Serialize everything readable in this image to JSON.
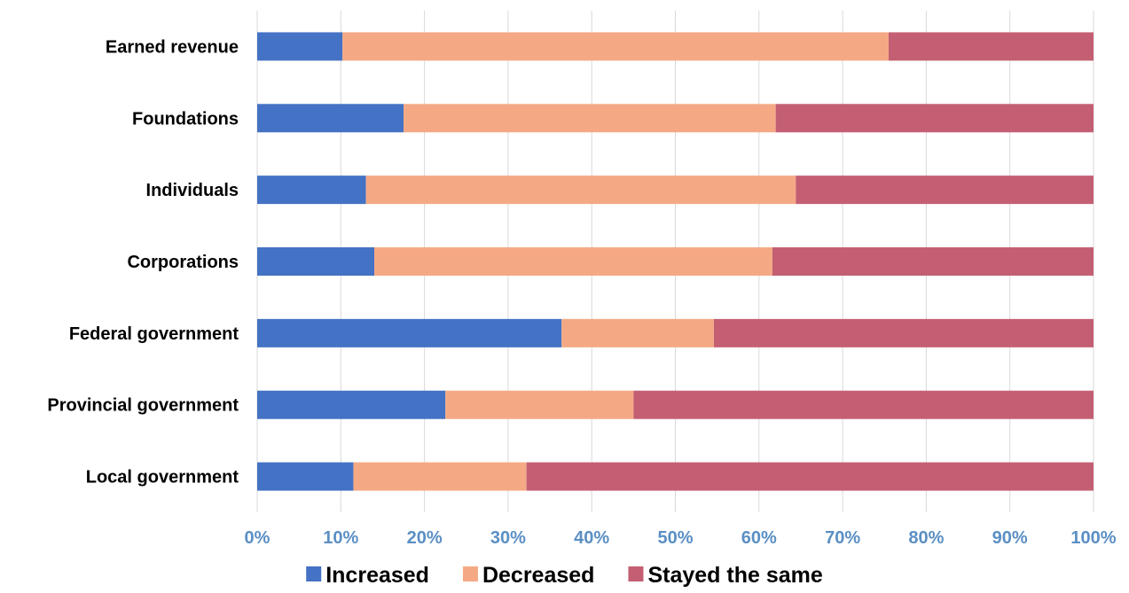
{
  "chart_data": {
    "type": "bar",
    "orientation": "horizontal",
    "stacked": true,
    "normalized_percent": true,
    "categories": [
      "Earned revenue",
      "Foundations",
      "Individuals",
      "Corporations",
      "Federal government",
      "Provincial government",
      "Local government"
    ],
    "series": [
      {
        "name": "Increased",
        "color": "#4472c4",
        "values": [
          10.2,
          17.5,
          13.0,
          14.0,
          36.4,
          22.5,
          11.5
        ]
      },
      {
        "name": "Decreased",
        "color": "#f4a984",
        "values": [
          65.3,
          44.5,
          51.4,
          47.6,
          18.2,
          22.5,
          20.7
        ]
      },
      {
        "name": "Stayed the same",
        "color": "#c45f73",
        "values": [
          24.5,
          38.0,
          35.6,
          38.4,
          45.4,
          55.0,
          67.8
        ]
      }
    ],
    "xlim": [
      0,
      100
    ],
    "x_ticks": [
      "0%",
      "10%",
      "20%",
      "30%",
      "40%",
      "50%",
      "60%",
      "70%",
      "80%",
      "90%",
      "100%"
    ],
    "grid": "vertical",
    "legend": "bottom",
    "title": "",
    "xlabel": "",
    "ylabel": ""
  }
}
